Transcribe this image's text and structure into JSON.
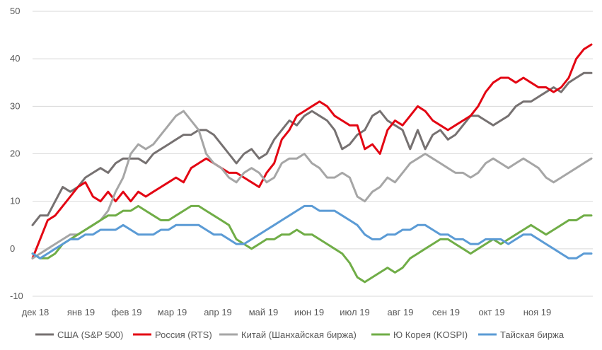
{
  "chart_data": {
    "type": "line",
    "title": "",
    "xlabel": "",
    "ylabel": "",
    "ylim": [
      -10,
      50
    ],
    "yticks": [
      -10,
      0,
      10,
      20,
      30,
      40,
      50
    ],
    "grid": "horizontal",
    "legend_position": "bottom",
    "x_tick_labels": [
      "дек 18",
      "янв 19",
      "фев 19",
      "мар 19",
      "апр 19",
      "май 19",
      "июн 19",
      "июл 19",
      "авг 19",
      "сен 19",
      "окт 19",
      "ноя 19"
    ],
    "series": [
      {
        "name": "США (S&P 500)",
        "color": "#767171",
        "values": [
          5,
          7,
          7,
          10,
          13,
          12,
          13,
          15,
          16,
          17,
          16,
          18,
          19,
          19,
          19,
          18,
          20,
          21,
          22,
          23,
          24,
          24,
          25,
          25,
          24,
          22,
          20,
          18,
          20,
          21,
          19,
          20,
          23,
          25,
          27,
          26,
          28,
          29,
          28,
          27,
          25,
          21,
          22,
          24,
          25,
          28,
          29,
          27,
          26,
          25,
          21,
          25,
          21,
          24,
          25,
          23,
          24,
          26,
          28,
          28,
          27,
          26,
          27,
          28,
          30,
          31,
          31,
          32,
          33,
          34,
          33,
          35,
          36,
          37,
          37
        ]
      },
      {
        "name": "Россия (RTS)",
        "color": "#e30613",
        "values": [
          -2,
          2,
          6,
          7,
          9,
          11,
          13,
          14,
          11,
          10,
          12,
          10,
          12,
          10,
          12,
          11,
          12,
          13,
          14,
          15,
          14,
          17,
          18,
          19,
          18,
          17,
          16,
          16,
          15,
          14,
          13,
          16,
          18,
          23,
          25,
          28,
          29,
          30,
          31,
          30,
          28,
          27,
          26,
          26,
          21,
          22,
          20,
          25,
          27,
          26,
          28,
          30,
          29,
          27,
          26,
          25,
          26,
          27,
          28,
          30,
          33,
          35,
          36,
          36,
          35,
          36,
          35,
          34,
          34,
          33,
          34,
          36,
          40,
          42,
          43
        ]
      },
      {
        "name": "Китай (Шанхайская биржа)",
        "color": "#a6a6a6",
        "values": [
          -2,
          -1,
          0,
          1,
          2,
          3,
          3,
          4,
          5,
          6,
          8,
          12,
          15,
          20,
          22,
          21,
          22,
          24,
          26,
          28,
          29,
          27,
          25,
          20,
          18,
          17,
          15,
          14,
          16,
          17,
          16,
          14,
          15,
          18,
          19,
          19,
          20,
          18,
          17,
          15,
          15,
          16,
          15,
          11,
          10,
          12,
          13,
          15,
          14,
          16,
          18,
          19,
          20,
          19,
          18,
          17,
          16,
          16,
          15,
          16,
          18,
          19,
          18,
          17,
          18,
          19,
          18,
          17,
          15,
          14,
          15,
          16,
          17,
          18,
          19
        ]
      },
      {
        "name": "Ю Корея (KOSPI)",
        "color": "#70ad47",
        "values": [
          -1,
          -2,
          -2,
          -1,
          1,
          2,
          3,
          4,
          5,
          6,
          7,
          7,
          8,
          8,
          9,
          8,
          7,
          6,
          6,
          7,
          8,
          9,
          9,
          8,
          7,
          6,
          5,
          2,
          1,
          0,
          1,
          2,
          2,
          3,
          3,
          4,
          3,
          3,
          2,
          1,
          0,
          -1,
          -3,
          -6,
          -7,
          -6,
          -5,
          -4,
          -5,
          -4,
          -2,
          -1,
          0,
          1,
          2,
          2,
          1,
          0,
          -1,
          0,
          1,
          2,
          1,
          2,
          3,
          4,
          5,
          4,
          3,
          4,
          5,
          6,
          6,
          7,
          7
        ]
      },
      {
        "name": "Тайская биржа",
        "color": "#5b9bd5",
        "values": [
          -1,
          -2,
          -1,
          0,
          1,
          2,
          2,
          3,
          3,
          4,
          4,
          4,
          5,
          4,
          3,
          3,
          3,
          4,
          4,
          5,
          5,
          5,
          5,
          4,
          3,
          3,
          2,
          1,
          1,
          2,
          3,
          4,
          5,
          6,
          7,
          8,
          9,
          9,
          8,
          8,
          8,
          7,
          6,
          5,
          3,
          2,
          2,
          3,
          3,
          4,
          4,
          5,
          5,
          4,
          3,
          3,
          2,
          2,
          1,
          1,
          2,
          2,
          2,
          1,
          2,
          3,
          3,
          2,
          1,
          0,
          -1,
          -2,
          -2,
          -1,
          -1
        ]
      }
    ]
  }
}
